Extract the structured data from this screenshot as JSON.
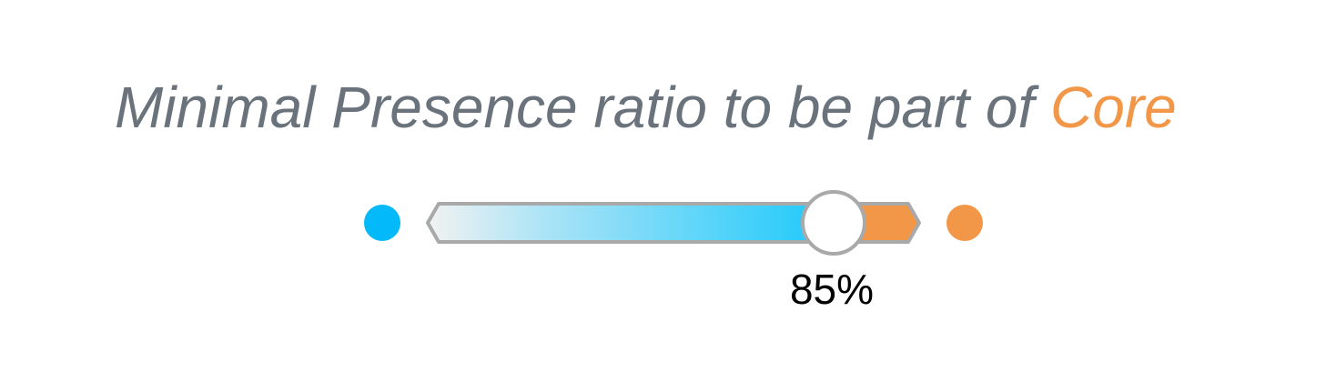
{
  "title": {
    "prefix": "Minimal Presence ratio to be part of ",
    "accent": "Core"
  },
  "slider": {
    "value_label": "85%",
    "value_fraction": 0.85,
    "left_color": "#03b9f9",
    "right_color": "#f29748"
  }
}
